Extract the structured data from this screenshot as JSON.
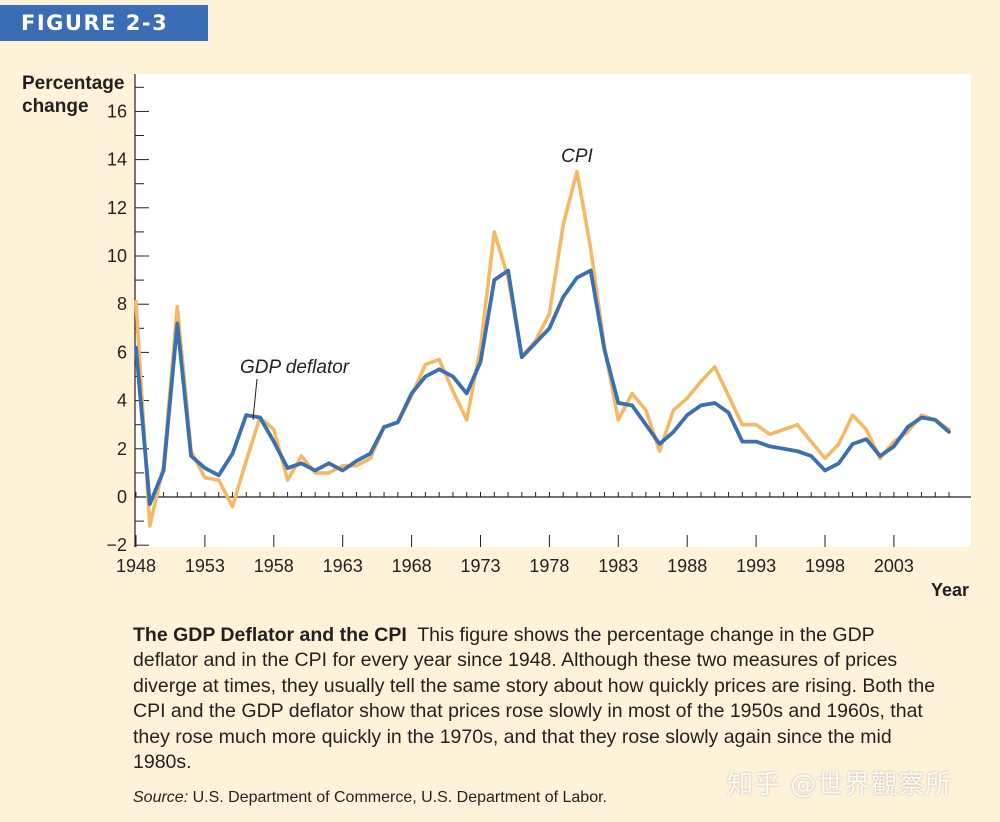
{
  "figure_label": "FIGURE 2-3",
  "caption": {
    "title": "The GDP Deflator and the CPI",
    "body": "This figure shows the percentage change in the GDP deflator and in the CPI for every year since 1948. Although these two measures of prices diverge at times, they usually tell the same story about how quickly prices are rising. Both the CPI and the GDP deflator show that prices rose slowly in most of the 1950s and 1960s, that they rose much more quickly in the 1970s, and that they rose slowly again since the mid 1980s."
  },
  "source": {
    "label": "Source:",
    "text": "U.S. Department of Commerce, U.S. Department of Labor."
  },
  "watermark": "知乎 @世界觀察所",
  "colors": {
    "background": "#fef2d8",
    "plot_area": "#ffffff",
    "gdp_deflator": "#3a6fb0",
    "cpi": "#f5b865",
    "header": "#3a6db5"
  },
  "chart_data": {
    "type": "line",
    "title": "The GDP Deflator and the CPI",
    "ylabel": "Percentage change",
    "xlabel": "Year",
    "ylim": [
      -2,
      17
    ],
    "xlim": [
      1948,
      2008
    ],
    "yticks": [
      -2,
      0,
      2,
      4,
      6,
      8,
      10,
      12,
      14,
      16
    ],
    "ytick_labels": [
      "−2",
      "0",
      "2",
      "4",
      "6",
      "8",
      "10",
      "12",
      "14",
      "16"
    ],
    "xticks": [
      1948,
      1953,
      1958,
      1963,
      1968,
      1973,
      1978,
      1983,
      1988,
      1993,
      1998,
      2003
    ],
    "xtick_labels": [
      "1948",
      "1953",
      "1958",
      "1963",
      "1968",
      "1973",
      "1978",
      "1983",
      "1988",
      "1993",
      "1998",
      "2003"
    ],
    "x": [
      1948,
      1949,
      1950,
      1951,
      1952,
      1953,
      1954,
      1955,
      1956,
      1957,
      1958,
      1959,
      1960,
      1961,
      1962,
      1963,
      1964,
      1965,
      1966,
      1967,
      1968,
      1969,
      1970,
      1971,
      1972,
      1973,
      1974,
      1975,
      1976,
      1977,
      1978,
      1979,
      1980,
      1981,
      1982,
      1983,
      1984,
      1985,
      1986,
      1987,
      1988,
      1989,
      1990,
      1991,
      1992,
      1993,
      1994,
      1995,
      1996,
      1997,
      1998,
      1999,
      2000,
      2001,
      2002,
      2003,
      2004,
      2005,
      2006,
      2007
    ],
    "series": [
      {
        "name": "CPI",
        "annotation": "CPI",
        "values": [
          8.1,
          -1.2,
          1.3,
          7.9,
          1.9,
          0.8,
          0.7,
          -0.4,
          1.5,
          3.3,
          2.8,
          0.7,
          1.7,
          1.0,
          1.0,
          1.3,
          1.3,
          1.6,
          2.9,
          3.1,
          4.2,
          5.5,
          5.7,
          4.4,
          3.2,
          6.2,
          11.0,
          9.1,
          5.8,
          6.5,
          7.6,
          11.3,
          13.5,
          10.3,
          6.2,
          3.2,
          4.3,
          3.6,
          1.9,
          3.6,
          4.1,
          4.8,
          5.4,
          4.2,
          3.0,
          3.0,
          2.6,
          2.8,
          3.0,
          2.3,
          1.6,
          2.2,
          3.4,
          2.8,
          1.6,
          2.3,
          2.7,
          3.4,
          3.2,
          2.8
        ]
      },
      {
        "name": "GDP deflator",
        "annotation": "GDP deflator",
        "values": [
          6.2,
          -0.3,
          1.1,
          7.2,
          1.7,
          1.2,
          0.9,
          1.8,
          3.4,
          3.3,
          2.3,
          1.2,
          1.4,
          1.1,
          1.4,
          1.1,
          1.5,
          1.8,
          2.9,
          3.1,
          4.3,
          5.0,
          5.3,
          5.0,
          4.3,
          5.6,
          9.0,
          9.4,
          5.8,
          6.4,
          7.0,
          8.3,
          9.1,
          9.4,
          6.1,
          3.9,
          3.8,
          3.0,
          2.2,
          2.7,
          3.4,
          3.8,
          3.9,
          3.5,
          2.3,
          2.3,
          2.1,
          2.0,
          1.9,
          1.7,
          1.1,
          1.4,
          2.2,
          2.4,
          1.7,
          2.1,
          2.9,
          3.3,
          3.2,
          2.7
        ]
      }
    ]
  }
}
